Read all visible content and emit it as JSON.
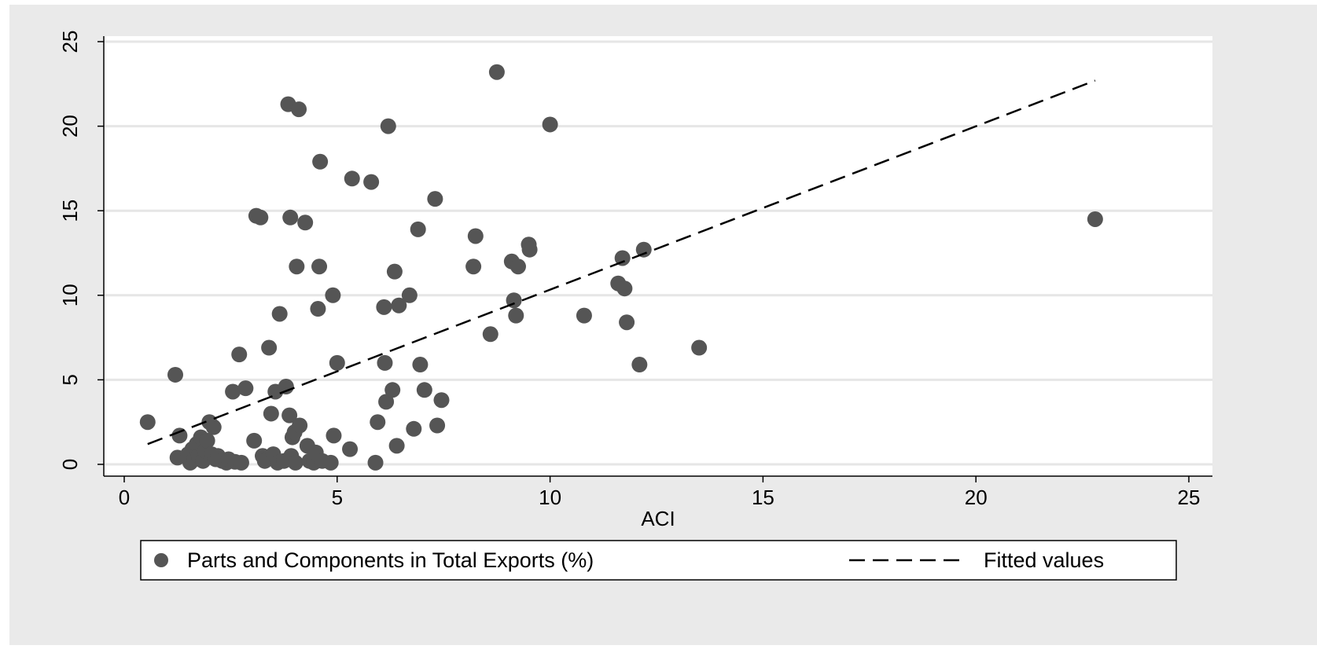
{
  "chart_data": {
    "type": "scatter",
    "xlabel": "ACI",
    "ylabel": "",
    "xlim": [
      0,
      25
    ],
    "ylim": [
      0,
      25
    ],
    "x_ticks": [
      "0",
      "5",
      "10",
      "15",
      "20",
      "25"
    ],
    "y_ticks": [
      "0",
      "5",
      "10",
      "15",
      "20",
      "25"
    ],
    "grid": "horizontal",
    "legend_position": "bottom",
    "series": [
      {
        "name": "Parts and Components in Total Exports (%)",
        "marker": "dot",
        "color": "#555555",
        "points": [
          [
            0.55,
            2.5
          ],
          [
            1.2,
            5.3
          ],
          [
            1.3,
            1.7
          ],
          [
            1.25,
            0.4
          ],
          [
            1.5,
            0.6
          ],
          [
            1.55,
            0.1
          ],
          [
            1.6,
            0.9
          ],
          [
            1.65,
            0.3
          ],
          [
            1.7,
            1.2
          ],
          [
            1.75,
            0.5
          ],
          [
            1.8,
            1.6
          ],
          [
            1.85,
            0.2
          ],
          [
            1.9,
            0.8
          ],
          [
            1.95,
            1.4
          ],
          [
            2.0,
            2.5
          ],
          [
            2.05,
            0.6
          ],
          [
            2.1,
            2.2
          ],
          [
            2.15,
            0.3
          ],
          [
            2.2,
            0.5
          ],
          [
            2.3,
            0.2
          ],
          [
            2.4,
            0.1
          ],
          [
            2.45,
            0.3
          ],
          [
            2.55,
            4.3
          ],
          [
            2.6,
            0.15
          ],
          [
            2.7,
            6.5
          ],
          [
            2.75,
            0.1
          ],
          [
            2.85,
            4.5
          ],
          [
            3.05,
            1.4
          ],
          [
            3.1,
            14.7
          ],
          [
            3.2,
            14.6
          ],
          [
            3.25,
            0.5
          ],
          [
            3.3,
            0.2
          ],
          [
            3.4,
            6.9
          ],
          [
            3.45,
            3.0
          ],
          [
            3.5,
            0.6
          ],
          [
            3.55,
            4.3
          ],
          [
            3.6,
            0.1
          ],
          [
            3.65,
            8.9
          ],
          [
            3.75,
            0.2
          ],
          [
            3.8,
            4.6
          ],
          [
            3.85,
            21.3
          ],
          [
            3.88,
            2.9
          ],
          [
            3.9,
            14.6
          ],
          [
            3.92,
            0.5
          ],
          [
            3.95,
            1.6
          ],
          [
            4.0,
            1.9
          ],
          [
            4.02,
            0.1
          ],
          [
            4.05,
            11.7
          ],
          [
            4.1,
            21.0
          ],
          [
            4.12,
            2.3
          ],
          [
            4.25,
            14.3
          ],
          [
            4.3,
            1.1
          ],
          [
            4.35,
            0.2
          ],
          [
            4.45,
            0.1
          ],
          [
            4.5,
            0.7
          ],
          [
            4.55,
            9.2
          ],
          [
            4.58,
            11.7
          ],
          [
            4.6,
            17.9
          ],
          [
            4.65,
            0.2
          ],
          [
            4.85,
            0.1
          ],
          [
            4.9,
            10.0
          ],
          [
            4.92,
            1.7
          ],
          [
            5.0,
            6.0
          ],
          [
            5.3,
            0.9
          ],
          [
            5.35,
            16.9
          ],
          [
            5.8,
            16.7
          ],
          [
            5.9,
            0.1
          ],
          [
            5.95,
            2.5
          ],
          [
            6.1,
            9.3
          ],
          [
            6.12,
            6.0
          ],
          [
            6.15,
            3.7
          ],
          [
            6.2,
            20.0
          ],
          [
            6.3,
            4.4
          ],
          [
            6.35,
            11.4
          ],
          [
            6.4,
            1.1
          ],
          [
            6.45,
            9.4
          ],
          [
            6.7,
            10.0
          ],
          [
            6.8,
            2.1
          ],
          [
            6.9,
            13.9
          ],
          [
            6.95,
            5.9
          ],
          [
            7.05,
            4.4
          ],
          [
            7.3,
            15.7
          ],
          [
            7.35,
            2.3
          ],
          [
            7.45,
            3.8
          ],
          [
            8.2,
            11.7
          ],
          [
            8.25,
            13.5
          ],
          [
            8.6,
            7.7
          ],
          [
            8.75,
            23.2
          ],
          [
            9.1,
            12.0
          ],
          [
            9.15,
            9.7
          ],
          [
            9.2,
            8.8
          ],
          [
            9.25,
            11.7
          ],
          [
            9.5,
            13.0
          ],
          [
            9.52,
            12.7
          ],
          [
            10.0,
            20.1
          ],
          [
            10.8,
            8.8
          ],
          [
            11.6,
            10.7
          ],
          [
            11.7,
            12.2
          ],
          [
            11.75,
            10.4
          ],
          [
            11.8,
            8.4
          ],
          [
            12.1,
            5.9
          ],
          [
            12.2,
            12.7
          ],
          [
            13.5,
            6.9
          ],
          [
            22.8,
            14.5
          ]
        ]
      },
      {
        "name": "Fitted values",
        "marker": "dashed-line",
        "color": "#000000",
        "points": [
          [
            0.55,
            1.2
          ],
          [
            22.8,
            22.7
          ]
        ]
      }
    ]
  }
}
